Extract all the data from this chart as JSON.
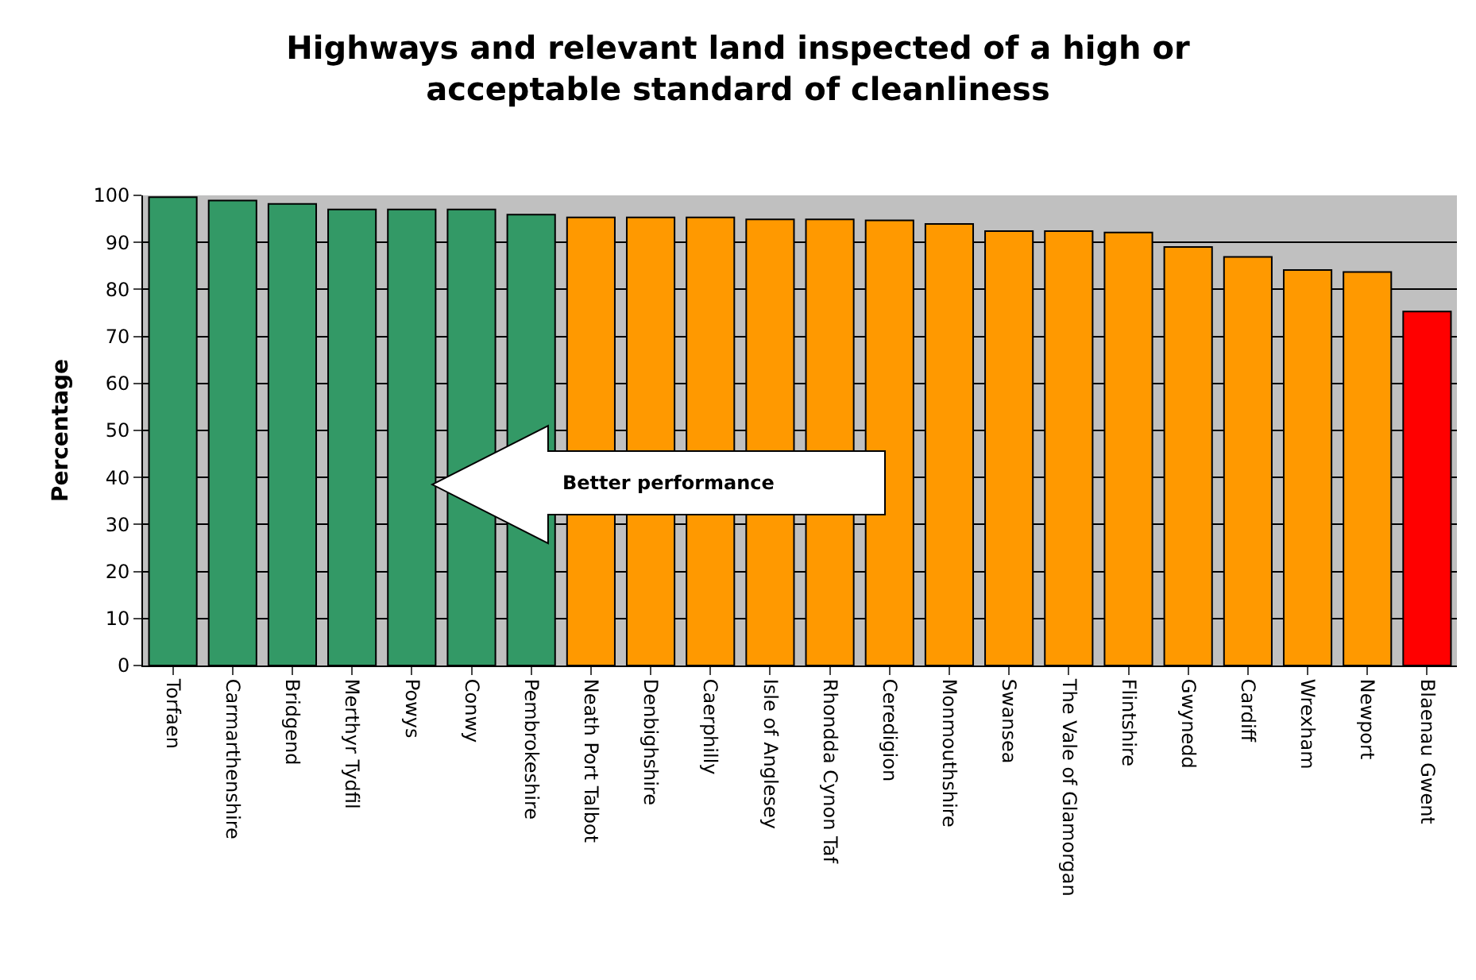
{
  "chart_data": {
    "type": "bar",
    "title": "Highways and relevant land inspected of a high or acceptable standard of cleanliness",
    "ylabel": "Percentage",
    "categories": [
      "Torfaen",
      "Carmarthenshire",
      "Bridgend",
      "Merthyr Tydfil",
      "Powys",
      "Conwy",
      "Pembrokeshire",
      "Neath Port Talbot",
      "Denbighshire",
      "Caerphilly",
      "Isle of Anglesey",
      "Rhondda Cynon Taf",
      "Ceredigion",
      "Monmouthshire",
      "Swansea",
      "The Vale of Glamorgan",
      "Flintshire",
      "Gwynedd",
      "Cardiff",
      "Wrexham",
      "Newport",
      "Blaenau Gwent"
    ],
    "values": [
      99.6,
      98.9,
      98.2,
      97.0,
      97.0,
      97.0,
      95.9,
      95.3,
      95.3,
      95.3,
      94.9,
      94.9,
      94.7,
      93.9,
      92.4,
      92.4,
      92.1,
      89.0,
      86.9,
      84.1,
      83.7,
      75.3
    ],
    "colors": [
      "#339966",
      "#339966",
      "#339966",
      "#339966",
      "#339966",
      "#339966",
      "#339966",
      "#ff9900",
      "#ff9900",
      "#ff9900",
      "#ff9900",
      "#ff9900",
      "#ff9900",
      "#ff9900",
      "#ff9900",
      "#ff9900",
      "#ff9900",
      "#ff9900",
      "#ff9900",
      "#ff9900",
      "#ff9900",
      "#ff0000"
    ],
    "ylim": [
      0,
      100
    ],
    "yticks": [
      0,
      10,
      20,
      30,
      40,
      50,
      60,
      70,
      80,
      90,
      100
    ],
    "grid": "y",
    "legend": false,
    "annotations": [
      "Better performance"
    ]
  }
}
